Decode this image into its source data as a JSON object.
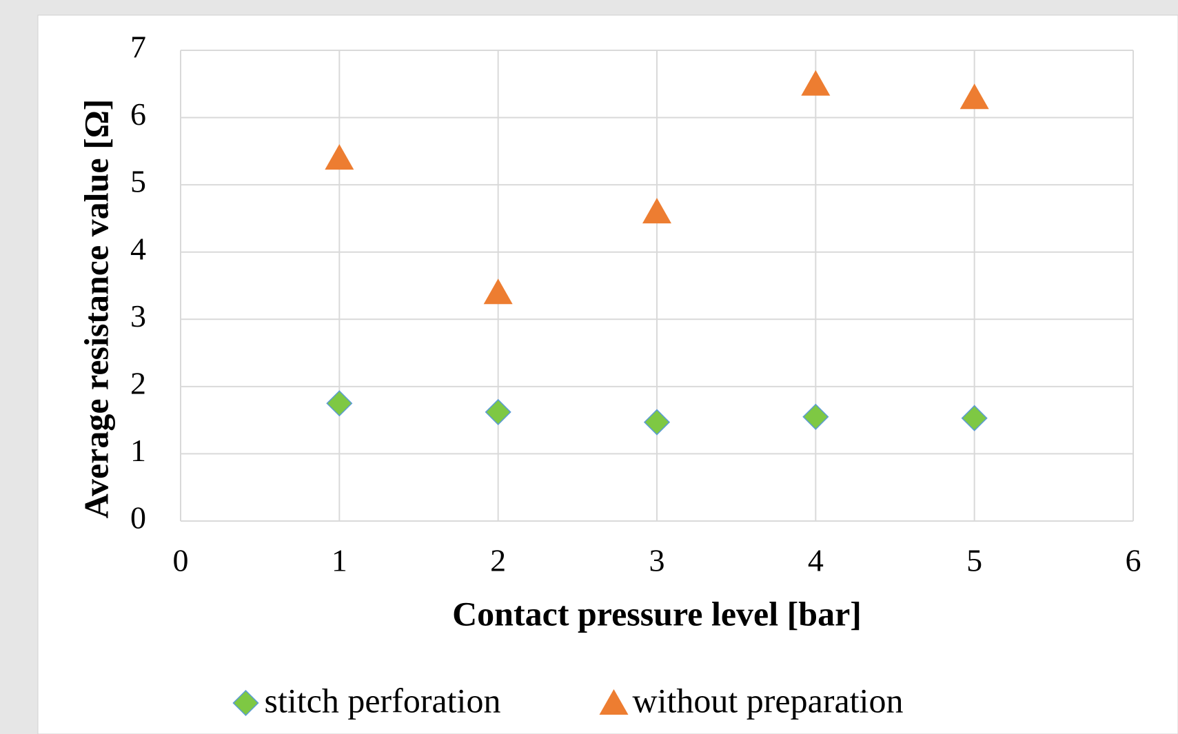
{
  "chart_data": {
    "type": "scatter",
    "x_label": "Contact pressure level [bar]",
    "y_label": "Average resistance value [Ω]",
    "xlim": [
      0,
      6
    ],
    "xticks": [
      0,
      1,
      2,
      3,
      4,
      5,
      6
    ],
    "ylim": [
      0,
      7
    ],
    "yticks": [
      0,
      1,
      2,
      3,
      4,
      5,
      6,
      7
    ],
    "grid": true,
    "legend": "bottom",
    "series": [
      {
        "name": "stitch perforation",
        "color": "#7ec843",
        "marker": "diamond",
        "x": [
          1,
          2,
          3,
          4,
          5
        ],
        "values": [
          1.75,
          1.62,
          1.47,
          1.55,
          1.53
        ]
      },
      {
        "name": "without preparation",
        "color": "#ed7d31",
        "marker": "triangle",
        "x": [
          1,
          2,
          3,
          4,
          5
        ],
        "values": [
          5.4,
          3.4,
          4.6,
          6.5,
          6.3
        ]
      }
    ]
  }
}
